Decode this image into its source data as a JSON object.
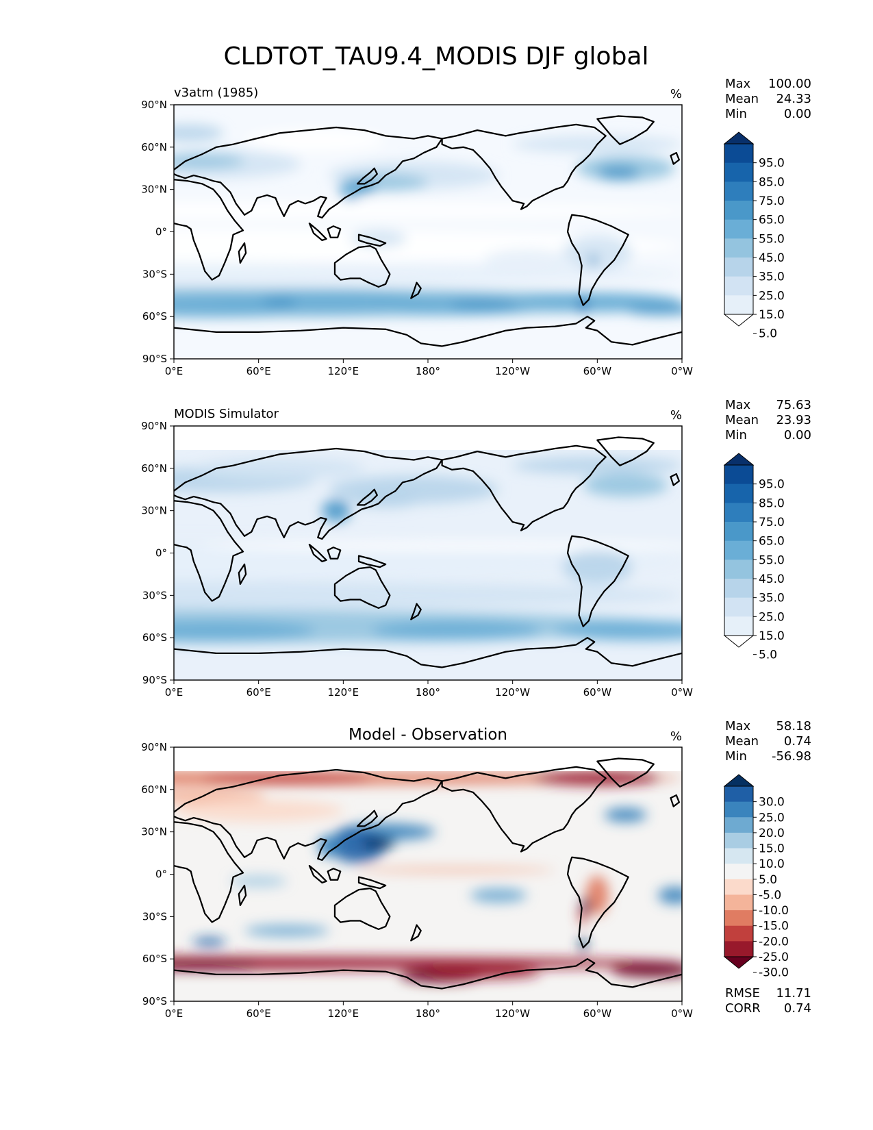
{
  "title": "CLDTOT_TAU9.4_MODIS DJF global",
  "lon_ticks": [
    "0°E",
    "60°E",
    "120°E",
    "180°",
    "120°W",
    "60°W",
    "0°W"
  ],
  "lat_ticks": [
    "90°N",
    "60°N",
    "30°N",
    "0°",
    "30°S",
    "60°S",
    "90°S"
  ],
  "panels": [
    {
      "left_title": "v3atm (1985)",
      "center_title": "",
      "units": "%",
      "stats": [
        {
          "label": "Max",
          "value": "100.00"
        },
        {
          "label": "Mean",
          "value": "24.33"
        },
        {
          "label": "Min",
          "value": "0.00"
        }
      ],
      "colorbar": {
        "labels": [
          "95.0",
          "85.0",
          "75.0",
          "65.0",
          "55.0",
          "45.0",
          "35.0",
          "25.0",
          "15.0",
          "5.0"
        ],
        "colors": [
          "#08306b",
          "#0b4b95",
          "#1764ab",
          "#2e7ebc",
          "#4a98c9",
          "#6aaed6",
          "#94c4df",
          "#b7d4ea",
          "#d2e3f3",
          "#e6f0f9",
          "#ffffff"
        ]
      },
      "field": "model"
    },
    {
      "left_title": "MODIS Simulator",
      "center_title": "",
      "units": "%",
      "stats": [
        {
          "label": "Max",
          "value": "75.63"
        },
        {
          "label": "Mean",
          "value": "23.93"
        },
        {
          "label": "Min",
          "value": "0.00"
        }
      ],
      "colorbar": {
        "labels": [
          "95.0",
          "85.0",
          "75.0",
          "65.0",
          "55.0",
          "45.0",
          "35.0",
          "25.0",
          "15.0",
          "5.0"
        ],
        "colors": [
          "#08306b",
          "#0b4b95",
          "#1764ab",
          "#2e7ebc",
          "#4a98c9",
          "#6aaed6",
          "#94c4df",
          "#b7d4ea",
          "#d2e3f3",
          "#e6f0f9",
          "#ffffff"
        ]
      },
      "field": "obs"
    },
    {
      "left_title": "",
      "center_title": "Model - Observation",
      "units": "%",
      "stats": [
        {
          "label": "Max",
          "value": "58.18"
        },
        {
          "label": "Mean",
          "value": "0.74"
        },
        {
          "label": "Min",
          "value": "-56.98"
        }
      ],
      "colorbar": {
        "labels": [
          "30.0",
          "25.0",
          "20.0",
          "15.0",
          "10.0",
          "5.0",
          "-5.0",
          "-10.0",
          "-15.0",
          "-20.0",
          "-25.0",
          "-30.0"
        ],
        "colors": [
          "#053061",
          "#1f5fa6",
          "#3a84bd",
          "#6eaad1",
          "#a9cde3",
          "#d6e7f1",
          "#f4f4f4",
          "#fbdacb",
          "#f4b49a",
          "#e07c62",
          "#c1403d",
          "#98192b",
          "#67001f"
        ]
      },
      "field": "diff",
      "bottom_stats": [
        {
          "label": "RMSE",
          "value": "11.71"
        },
        {
          "label": "CORR",
          "value": "0.74"
        }
      ]
    }
  ]
}
